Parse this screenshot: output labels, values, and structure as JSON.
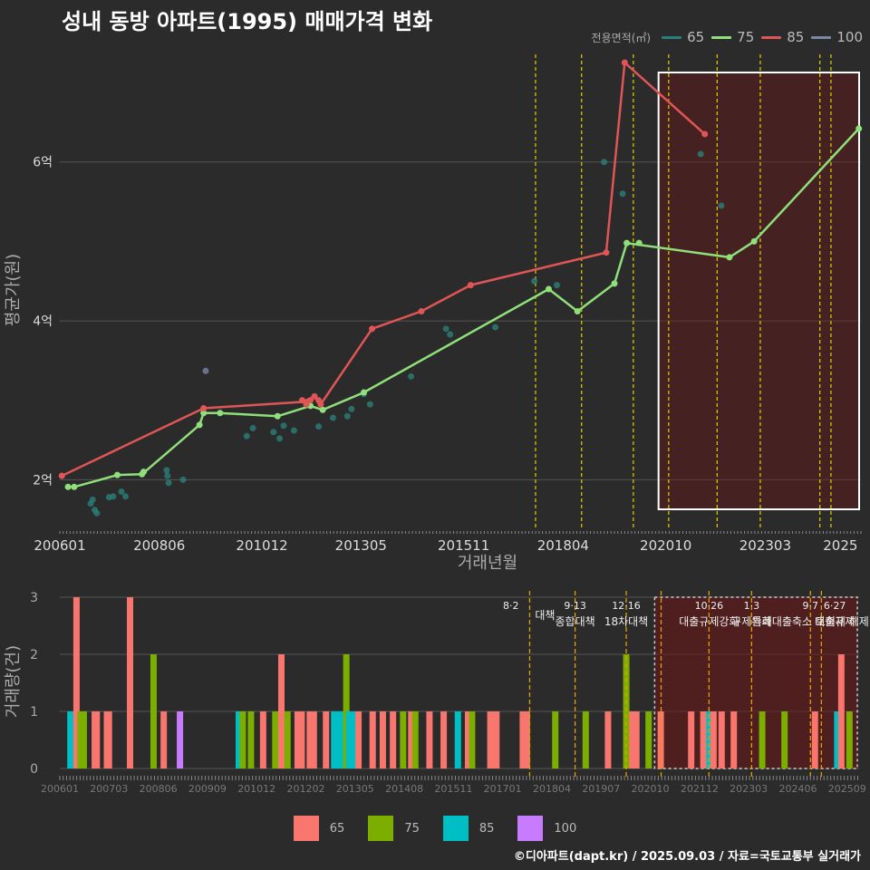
{
  "chart_data": [
    {
      "type": "line",
      "title": "성내 동방 아파트(1995) 매매가격 변화",
      "xlabel": "거래년월",
      "ylabel": "평균가(원)",
      "x_range": [
        2006.0,
        2025.5
      ],
      "ylim": [
        1.4,
        7.4
      ],
      "y_ticks": [
        {
          "value": 2,
          "label": "2억"
        },
        {
          "value": 4,
          "label": "4억"
        },
        {
          "value": 6,
          "label": "6억"
        }
      ],
      "x_ticks": [
        {
          "value": 2006.0,
          "label": "200601"
        },
        {
          "value": 2008.42,
          "label": "200806"
        },
        {
          "value": 2010.92,
          "label": "201012"
        },
        {
          "value": 2013.33,
          "label": "201305"
        },
        {
          "value": 2015.83,
          "label": "201511"
        },
        {
          "value": 2018.25,
          "label": "201804"
        },
        {
          "value": 2020.75,
          "label": "202010"
        },
        {
          "value": 2023.17,
          "label": "202303"
        },
        {
          "value": 2025.0,
          "label": "2025"
        }
      ],
      "legend_title": "전용면적(㎡)",
      "series": [
        {
          "name": "65",
          "color": "#2a7f7a",
          "points": [
            [
              2006.75,
              1.7
            ],
            [
              2006.8,
              1.75
            ],
            [
              2006.85,
              1.62
            ],
            [
              2006.9,
              1.58
            ],
            [
              2007.2,
              1.78
            ],
            [
              2007.3,
              1.79
            ],
            [
              2007.5,
              1.85
            ],
            [
              2007.6,
              1.79
            ],
            [
              2008.6,
              2.12
            ],
            [
              2008.62,
              2.05
            ],
            [
              2008.65,
              1.96
            ],
            [
              2009.0,
              2.0
            ],
            [
              2010.55,
              2.55
            ],
            [
              2010.7,
              2.65
            ],
            [
              2011.2,
              2.6
            ],
            [
              2011.35,
              2.52
            ],
            [
              2011.45,
              2.68
            ],
            [
              2011.7,
              2.62
            ],
            [
              2012.3,
              2.67
            ],
            [
              2012.65,
              2.78
            ],
            [
              2013.0,
              2.8
            ],
            [
              2013.1,
              2.89
            ],
            [
              2013.4,
              3.08
            ],
            [
              2013.55,
              2.95
            ],
            [
              2014.55,
              3.3
            ],
            [
              2015.4,
              3.9
            ],
            [
              2015.5,
              3.83
            ],
            [
              2016.6,
              3.92
            ],
            [
              2017.55,
              4.5
            ],
            [
              2018.1,
              4.45
            ],
            [
              2019.25,
              6.0
            ],
            [
              2019.7,
              5.6
            ],
            [
              2021.6,
              6.1
            ],
            [
              2022.1,
              5.45
            ]
          ],
          "mean": []
        },
        {
          "name": "75",
          "color": "#8fe07a",
          "points": [
            [
              2006.2,
              1.91
            ],
            [
              2006.35,
              1.91
            ],
            [
              2007.4,
              2.06
            ],
            [
              2008.0,
              2.07
            ],
            [
              2008.04,
              2.1
            ],
            [
              2009.4,
              2.69
            ],
            [
              2009.5,
              2.84
            ],
            [
              2009.9,
              2.84
            ],
            [
              2011.3,
              2.8
            ],
            [
              2012.1,
              2.93
            ],
            [
              2012.4,
              2.88
            ],
            [
              2013.4,
              3.1
            ],
            [
              2017.9,
              4.4
            ],
            [
              2018.6,
              4.12
            ],
            [
              2019.5,
              4.47
            ],
            [
              2019.8,
              4.98
            ],
            [
              2020.1,
              4.98
            ],
            [
              2022.3,
              4.8
            ],
            [
              2022.9,
              5.0
            ],
            [
              2025.45,
              6.42
            ]
          ],
          "mean": [
            [
              2006.2,
              1.91
            ],
            [
              2006.35,
              1.91
            ],
            [
              2007.4,
              2.06
            ],
            [
              2008.0,
              2.07
            ],
            [
              2009.4,
              2.69
            ],
            [
              2009.5,
              2.84
            ],
            [
              2009.9,
              2.84
            ],
            [
              2011.3,
              2.8
            ],
            [
              2012.1,
              2.93
            ],
            [
              2012.4,
              2.88
            ],
            [
              2013.4,
              3.1
            ],
            [
              2017.9,
              4.4
            ],
            [
              2018.6,
              4.12
            ],
            [
              2019.5,
              4.47
            ],
            [
              2019.8,
              4.98
            ],
            [
              2022.3,
              4.8
            ],
            [
              2022.9,
              5.0
            ],
            [
              2025.45,
              6.42
            ]
          ]
        },
        {
          "name": "85",
          "color": "#e05555",
          "points": [
            [
              2006.05,
              2.05
            ],
            [
              2009.5,
              2.9
            ],
            [
              2011.9,
              3.0
            ],
            [
              2012.0,
              2.95
            ],
            [
              2012.1,
              3.0
            ],
            [
              2012.2,
              3.05
            ],
            [
              2012.3,
              3.0
            ],
            [
              2012.35,
              2.95
            ],
            [
              2013.6,
              3.9
            ],
            [
              2014.8,
              4.12
            ],
            [
              2016.0,
              4.45
            ],
            [
              2019.3,
              4.86
            ],
            [
              2019.75,
              7.25
            ],
            [
              2021.7,
              6.35
            ]
          ],
          "mean": [
            [
              2006.05,
              2.05
            ],
            [
              2009.5,
              2.9
            ],
            [
              2011.9,
              2.98
            ],
            [
              2012.2,
              3.05
            ],
            [
              2012.35,
              2.95
            ],
            [
              2013.6,
              3.9
            ],
            [
              2014.8,
              4.12
            ],
            [
              2016.0,
              4.45
            ],
            [
              2019.3,
              4.86
            ],
            [
              2019.75,
              7.25
            ],
            [
              2021.7,
              6.35
            ]
          ]
        },
        {
          "name": "100",
          "color": "#7a86a8",
          "points": [
            [
              2009.55,
              3.37
            ]
          ],
          "mean": []
        }
      ],
      "policy_lines": [
        2017.58,
        2018.7,
        2019.96,
        2020.82,
        2022.0,
        2023.05,
        2024.5,
        2024.77
      ],
      "highlight_range": [
        2020.75,
        2025.5
      ]
    },
    {
      "type": "bar",
      "title": "",
      "xlabel": "",
      "ylabel": "거래량(건)",
      "x_range": [
        2006.0,
        2025.7
      ],
      "ylim": [
        0,
        3
      ],
      "y_ticks": [
        0,
        1,
        2,
        3
      ],
      "x_ticks": [
        "200601",
        "200703",
        "200806",
        "200909",
        "201012",
        "201202",
        "201305",
        "201408",
        "201511",
        "201701",
        "201804",
        "201907",
        "202010",
        "202112",
        "202303",
        "202406",
        "202509"
      ],
      "legend": [
        {
          "name": "65",
          "color": "#f8766d"
        },
        {
          "name": "75",
          "color": "#7cae00"
        },
        {
          "name": "85",
          "color": "#00bfc4"
        },
        {
          "name": "100",
          "color": "#c77cff"
        }
      ],
      "bars": [
        {
          "x": 2006.25,
          "series": "85",
          "value": 1
        },
        {
          "x": 2006.4,
          "series": "65",
          "value": 3
        },
        {
          "x": 2006.5,
          "series": "75",
          "value": 1
        },
        {
          "x": 2006.58,
          "series": "75",
          "value": 1
        },
        {
          "x": 2006.85,
          "series": "65",
          "value": 1
        },
        {
          "x": 2006.9,
          "series": "65",
          "value": 1
        },
        {
          "x": 2007.15,
          "series": "65",
          "value": 1
        },
        {
          "x": 2007.2,
          "series": "65",
          "value": 1
        },
        {
          "x": 2007.72,
          "series": "65",
          "value": 3
        },
        {
          "x": 2008.3,
          "series": "75",
          "value": 2
        },
        {
          "x": 2008.55,
          "series": "65",
          "value": 1
        },
        {
          "x": 2008.95,
          "series": "100",
          "value": 1
        },
        {
          "x": 2010.4,
          "series": "85",
          "value": 1
        },
        {
          "x": 2010.5,
          "series": "75",
          "value": 1
        },
        {
          "x": 2010.7,
          "series": "75",
          "value": 1
        },
        {
          "x": 2011.0,
          "series": "65",
          "value": 1
        },
        {
          "x": 2011.3,
          "series": "75",
          "value": 1
        },
        {
          "x": 2011.45,
          "series": "65",
          "value": 2
        },
        {
          "x": 2011.6,
          "series": "75",
          "value": 1
        },
        {
          "x": 2011.85,
          "series": "65",
          "value": 1
        },
        {
          "x": 2011.95,
          "series": "65",
          "value": 1
        },
        {
          "x": 2012.15,
          "series": "65",
          "value": 1
        },
        {
          "x": 2012.25,
          "series": "65",
          "value": 1
        },
        {
          "x": 2012.55,
          "series": "65",
          "value": 1
        },
        {
          "x": 2012.75,
          "series": "85",
          "value": 1
        },
        {
          "x": 2012.85,
          "series": "85",
          "value": 1
        },
        {
          "x": 2012.95,
          "series": "85",
          "value": 1
        },
        {
          "x": 2013.05,
          "series": "75",
          "value": 2
        },
        {
          "x": 2013.12,
          "series": "85",
          "value": 1
        },
        {
          "x": 2013.22,
          "series": "85",
          "value": 1
        },
        {
          "x": 2013.35,
          "series": "65",
          "value": 1
        },
        {
          "x": 2013.7,
          "series": "65",
          "value": 1
        },
        {
          "x": 2013.95,
          "series": "65",
          "value": 1
        },
        {
          "x": 2014.2,
          "series": "65",
          "value": 1
        },
        {
          "x": 2014.45,
          "series": "75",
          "value": 1
        },
        {
          "x": 2014.65,
          "series": "65",
          "value": 1
        },
        {
          "x": 2014.75,
          "series": "75",
          "value": 1
        },
        {
          "x": 2015.1,
          "series": "65",
          "value": 1
        },
        {
          "x": 2015.45,
          "series": "65",
          "value": 1
        },
        {
          "x": 2015.8,
          "series": "85",
          "value": 1
        },
        {
          "x": 2016.05,
          "series": "65",
          "value": 1
        },
        {
          "x": 2016.15,
          "series": "75",
          "value": 1
        },
        {
          "x": 2016.6,
          "series": "65",
          "value": 1
        },
        {
          "x": 2016.75,
          "series": "65",
          "value": 1
        },
        {
          "x": 2017.4,
          "series": "65",
          "value": 1
        },
        {
          "x": 2017.5,
          "series": "65",
          "value": 1
        },
        {
          "x": 2018.2,
          "series": "75",
          "value": 1
        },
        {
          "x": 2018.95,
          "series": "75",
          "value": 1
        },
        {
          "x": 2019.5,
          "series": "65",
          "value": 1
        },
        {
          "x": 2019.95,
          "series": "75",
          "value": 2
        },
        {
          "x": 2020.1,
          "series": "65",
          "value": 1
        },
        {
          "x": 2020.2,
          "series": "65",
          "value": 1
        },
        {
          "x": 2020.5,
          "series": "75",
          "value": 1
        },
        {
          "x": 2020.8,
          "series": "65",
          "value": 1
        },
        {
          "x": 2021.55,
          "series": "65",
          "value": 1
        },
        {
          "x": 2021.85,
          "series": "65",
          "value": 1
        },
        {
          "x": 2022.0,
          "series": "85",
          "value": 1
        },
        {
          "x": 2022.1,
          "series": "65",
          "value": 1
        },
        {
          "x": 2022.3,
          "series": "65",
          "value": 1
        },
        {
          "x": 2022.6,
          "series": "65",
          "value": 1
        },
        {
          "x": 2023.3,
          "series": "75",
          "value": 1
        },
        {
          "x": 2023.85,
          "series": "75",
          "value": 1
        },
        {
          "x": 2024.6,
          "series": "65",
          "value": 1
        },
        {
          "x": 2025.15,
          "series": "85",
          "value": 1
        },
        {
          "x": 2025.25,
          "series": "65",
          "value": 2
        },
        {
          "x": 2025.45,
          "series": "75",
          "value": 1
        }
      ],
      "policy_lines": [
        2017.58,
        2018.7,
        2019.96,
        2020.82,
        2022.0,
        2023.05,
        2024.5,
        2024.77
      ],
      "policy_labels": [
        {
          "x": 2017.58,
          "date": "8·2",
          "text": "대책",
          "anchor": "end"
        },
        {
          "x": 2018.7,
          "date": "9·13",
          "text": "종합대책",
          "anchor": "middle"
        },
        {
          "x": 2019.96,
          "date": "12·16",
          "text": "18차대책",
          "anchor": "middle"
        },
        {
          "x": 2022.0,
          "date": "10·26",
          "text": "대출규제강화",
          "anchor": "middle"
        },
        {
          "x": 2023.05,
          "date": "1·3",
          "text": "규제완화",
          "anchor": "middle"
        },
        {
          "x": 2024.5,
          "date": "9·7",
          "text": "특례대출축소 토허제 해제",
          "anchor": "middle"
        },
        {
          "x": 2025.1,
          "date": "6·27",
          "text": "대출규제",
          "anchor": "middle"
        }
      ],
      "highlight_range": [
        2020.75,
        2025.7
      ]
    }
  ],
  "footer": "©디아파트(dapt.kr) / 2025.09.03 / 자료=국토교통부 실거래가"
}
